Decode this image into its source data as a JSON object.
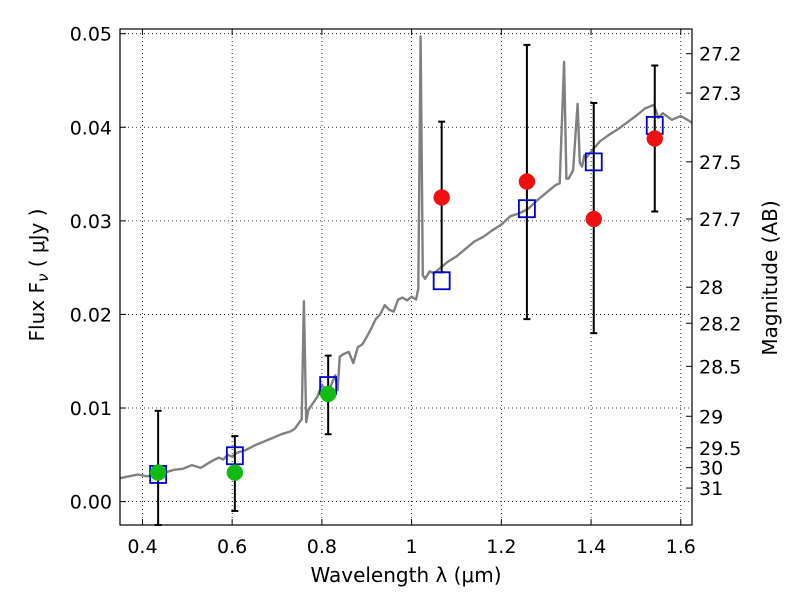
{
  "chart_data": {
    "type": "scatter",
    "title": "",
    "xlabel": "Wavelength  λ (μm)",
    "ylabel": "Flux  F",
    "ylabel_sub": "ν",
    "ylabel_unit": "  ( μJy )",
    "y2label": "Magnitude (AB)",
    "xlim": [
      0.35,
      1.625
    ],
    "ylim": [
      -0.0025,
      0.0505
    ],
    "grid": true,
    "x_ticks": [
      0.4,
      0.6,
      0.8,
      1.0,
      1.2,
      1.4,
      1.6
    ],
    "x_tick_labels": [
      "0.4",
      "0.6",
      "0.8",
      "1",
      "1.2",
      "1.4",
      "1.6"
    ],
    "y_ticks": [
      0.0,
      0.01,
      0.02,
      0.03,
      0.04,
      0.05
    ],
    "y_tick_labels": [
      "0.00",
      "0.01",
      "0.02",
      "0.03",
      "0.04",
      "0.05"
    ],
    "y2_ticks": [
      {
        "mag": 27.2,
        "label": "27.2"
      },
      {
        "mag": 27.3,
        "label": "27.3"
      },
      {
        "mag": 27.5,
        "label": "27.5"
      },
      {
        "mag": 27.7,
        "label": "27.7"
      },
      {
        "mag": 28,
        "label": "28"
      },
      {
        "mag": 28.2,
        "label": "28.2"
      },
      {
        "mag": 28.5,
        "label": "28.5"
      },
      {
        "mag": 29,
        "label": "29"
      },
      {
        "mag": 29.5,
        "label": "29.5"
      },
      {
        "mag": 30,
        "label": "30"
      },
      {
        "mag": 31,
        "label": "31"
      }
    ],
    "model_spectrum": {
      "color": "#808080",
      "x": [
        0.35,
        0.37,
        0.39,
        0.41,
        0.43,
        0.45,
        0.47,
        0.49,
        0.51,
        0.53,
        0.55,
        0.57,
        0.58,
        0.59,
        0.6,
        0.61,
        0.63,
        0.65,
        0.67,
        0.69,
        0.71,
        0.73,
        0.74,
        0.75,
        0.755,
        0.76,
        0.765,
        0.77,
        0.78,
        0.79,
        0.8,
        0.81,
        0.82,
        0.83,
        0.835,
        0.84,
        0.85,
        0.86,
        0.87,
        0.88,
        0.89,
        0.9,
        0.91,
        0.92,
        0.93,
        0.94,
        0.95,
        0.96,
        0.97,
        0.98,
        0.99,
        1.0,
        1.01,
        1.015,
        1.02,
        1.025,
        1.03,
        1.04,
        1.05,
        1.06,
        1.08,
        1.1,
        1.12,
        1.14,
        1.16,
        1.18,
        1.2,
        1.22,
        1.24,
        1.26,
        1.28,
        1.3,
        1.32,
        1.33,
        1.34,
        1.345,
        1.35,
        1.36,
        1.37,
        1.375,
        1.38,
        1.385,
        1.39,
        1.4,
        1.42,
        1.44,
        1.46,
        1.48,
        1.5,
        1.52,
        1.54,
        1.55,
        1.56,
        1.58,
        1.6,
        1.625
      ],
      "y": [
        0.0025,
        0.0027,
        0.0029,
        0.0027,
        0.0029,
        0.0031,
        0.0034,
        0.0035,
        0.0039,
        0.0036,
        0.0042,
        0.0047,
        0.0045,
        0.005,
        0.0048,
        0.0052,
        0.0055,
        0.006,
        0.0064,
        0.0068,
        0.0072,
        0.0075,
        0.0078,
        0.0085,
        0.0088,
        0.0214,
        0.0085,
        0.0098,
        0.0105,
        0.0112,
        0.0125,
        0.0118,
        0.0124,
        0.0135,
        0.0119,
        0.0155,
        0.0158,
        0.016,
        0.0148,
        0.0165,
        0.0168,
        0.0176,
        0.0185,
        0.0195,
        0.02,
        0.021,
        0.0205,
        0.0203,
        0.0216,
        0.0218,
        0.0215,
        0.0219,
        0.0216,
        0.0228,
        0.0497,
        0.0242,
        0.0238,
        0.0246,
        0.0244,
        0.0248,
        0.0256,
        0.0262,
        0.027,
        0.0278,
        0.0283,
        0.029,
        0.0296,
        0.0305,
        0.0308,
        0.0313,
        0.0322,
        0.033,
        0.0338,
        0.034,
        0.047,
        0.0345,
        0.0345,
        0.0354,
        0.0425,
        0.0362,
        0.0358,
        0.037,
        0.0368,
        0.0374,
        0.0385,
        0.0392,
        0.0398,
        0.0405,
        0.0412,
        0.042,
        0.0424,
        0.041,
        0.0415,
        0.0408,
        0.0412,
        0.0405
      ]
    },
    "model_fluxes": {
      "marker": "open-square",
      "color": "#0000cc",
      "x": [
        0.435,
        0.606,
        0.814,
        1.067,
        1.257,
        1.406,
        1.542
      ],
      "y": [
        0.0029,
        0.0049,
        0.0124,
        0.0236,
        0.0313,
        0.0363,
        0.0402
      ]
    },
    "detections": {
      "marker": "filled-circle",
      "color": "#ee1111",
      "x": [
        1.067,
        1.257,
        1.406,
        1.542
      ],
      "y": [
        0.0325,
        0.0342,
        0.0302,
        0.0388
      ],
      "yerr_low": [
        0.0245,
        0.0195,
        0.018,
        0.031
      ],
      "yerr_high": [
        0.0406,
        0.0488,
        0.0426,
        0.0466
      ]
    },
    "upper_limits": {
      "marker": "filled-circle",
      "color": "#11bb11",
      "x": [
        0.435,
        0.606,
        0.814
      ],
      "y": [
        0.0031,
        0.0031,
        0.0115
      ],
      "yerr_low": [
        -0.0025,
        -0.001,
        0.0072
      ],
      "yerr_high": [
        0.0097,
        0.007,
        0.0156
      ]
    }
  }
}
